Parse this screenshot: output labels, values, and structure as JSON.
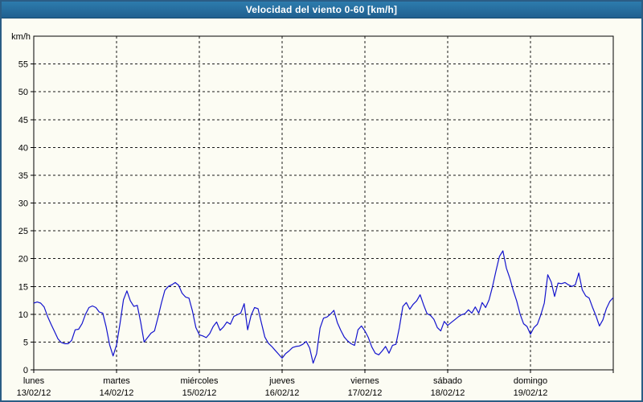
{
  "window": {
    "title": "Velocidad del viento 0-60 [km/h]"
  },
  "chart_data": {
    "type": "line",
    "title": "Velocidad del viento 0-60 [km/h]",
    "ylabel": "km/h",
    "xlabel": "",
    "ylim": [
      0,
      60
    ],
    "y_ticks": [
      0,
      5,
      10,
      15,
      20,
      25,
      30,
      35,
      40,
      45,
      50,
      55
    ],
    "grid": "dashed, horizontal at each 5 km/h and vertical at each day boundary",
    "legend_position": "none",
    "line_color": "#1414cd",
    "categories": [
      {
        "name": "lunes",
        "date": "13/02/12"
      },
      {
        "name": "martes",
        "date": "14/02/12"
      },
      {
        "name": "miércoles",
        "date": "15/02/12"
      },
      {
        "name": "jueves",
        "date": "16/02/12"
      },
      {
        "name": "viernes",
        "date": "17/02/12"
      },
      {
        "name": "sábado",
        "date": "18/02/12"
      },
      {
        "name": "domingo",
        "date": "19/02/12"
      }
    ],
    "sample_interval_hours": 1,
    "series": [
      {
        "name": "Velocidad del viento [km/h]",
        "values": [
          12.0,
          12.2,
          12.0,
          11.3,
          9.6,
          8.2,
          6.9,
          5.6,
          4.9,
          4.7,
          4.7,
          5.3,
          7.2,
          7.3,
          8.3,
          10.0,
          11.2,
          11.5,
          11.2,
          10.4,
          10.2,
          7.7,
          4.5,
          2.5,
          4.5,
          8.3,
          12.6,
          14.2,
          12.4,
          11.4,
          11.6,
          8.6,
          5.0,
          5.8,
          6.6,
          7.0,
          9.4,
          12.0,
          14.3,
          15.0,
          15.3,
          15.7,
          15.2,
          13.8,
          13.1,
          12.9,
          10.6,
          7.6,
          6.3,
          6.1,
          5.8,
          6.5,
          7.8,
          8.6,
          7.1,
          7.7,
          8.6,
          8.2,
          9.6,
          9.9,
          10.2,
          11.9,
          7.2,
          9.8,
          11.2,
          11.0,
          8.4,
          5.9,
          4.8,
          4.2,
          3.5,
          2.8,
          2.1,
          2.9,
          3.4,
          4.0,
          4.2,
          4.3,
          4.6,
          5.1,
          3.9,
          1.2,
          2.9,
          7.5,
          9.3,
          9.5,
          10.0,
          10.7,
          8.5,
          7.1,
          5.9,
          5.2,
          4.7,
          4.4,
          7.2,
          7.9,
          7.0,
          5.8,
          4.1,
          3.0,
          2.7,
          3.4,
          4.2,
          3.0,
          4.4,
          4.6,
          7.6,
          11.4,
          12.1,
          10.9,
          11.8,
          12.4,
          13.5,
          11.7,
          10.1,
          9.8,
          9.1,
          7.6,
          7.0,
          8.7,
          8.0,
          8.5,
          9.0,
          9.5,
          9.9,
          10.1,
          10.8,
          10.2,
          11.3,
          10.2,
          12.1,
          11.2,
          12.6,
          15.0,
          17.8,
          20.4,
          21.4,
          18.3,
          16.5,
          14.3,
          12.4,
          10.0,
          8.3,
          7.8,
          6.4,
          7.6,
          8.2,
          9.9,
          12.0,
          17.1,
          15.8,
          13.2,
          15.6,
          15.5,
          15.7,
          15.3,
          15.0,
          15.3,
          17.4,
          14.4,
          13.3,
          12.9,
          11.2,
          9.7,
          7.9,
          9.0,
          11.0,
          12.3,
          13.0
        ]
      }
    ]
  }
}
